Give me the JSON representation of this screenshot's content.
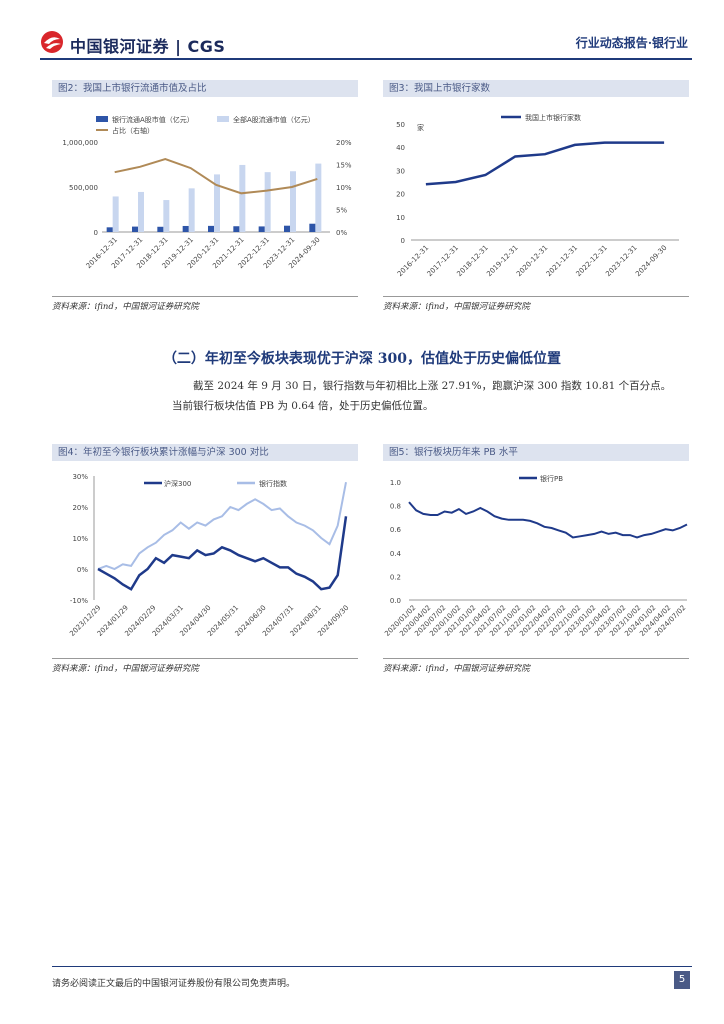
{
  "header": {
    "brand_cn": "中国银河证券",
    "brand_en": "CGS",
    "report_type": "行业动态报告",
    "industry": "·银行业",
    "colors": {
      "navy": "#1f3a7a",
      "logo_red": "#d9262b"
    }
  },
  "fig2": {
    "title": "图2：我国上市银行流通市值及占比",
    "source": "资料来源：ifind，中国银河证券研究院",
    "chart_data": {
      "type": "bar",
      "categories": [
        "2016-12-31",
        "2017-12-31",
        "2018-12-31",
        "2019-12-31",
        "2020-12-31",
        "2021-12-31",
        "2022-12-31",
        "2023-12-31",
        "2024-09-30"
      ],
      "series": [
        {
          "name": "银行流通A股市值（亿元）",
          "axis": "left",
          "color": "#2e55a8",
          "values": [
            52000,
            60000,
            58000,
            67000,
            68000,
            64000,
            62000,
            70000,
            92000
          ]
        },
        {
          "name": "全部A股流通市值（亿元）",
          "axis": "left",
          "color": "#c8d6ef",
          "values": [
            395000,
            445000,
            355000,
            485000,
            640000,
            745000,
            665000,
            675000,
            760000
          ]
        },
        {
          "name": "占比（右轴）",
          "axis": "right",
          "type": "line",
          "color": "#b08a57",
          "values": [
            13.3,
            14.5,
            16.2,
            14.2,
            10.5,
            8.6,
            9.2,
            10.0,
            11.8
          ]
        }
      ],
      "y_left": {
        "min": 0,
        "max": 1000000,
        "ticks": [
          "0",
          "500,000",
          "1,000,000"
        ]
      },
      "y_right": {
        "min": 0,
        "max": 20,
        "ticks": [
          "0%",
          "5%",
          "10%",
          "15%",
          "20%"
        ]
      }
    }
  },
  "fig3": {
    "title": "图3：我国上市银行家数",
    "source": "资料来源：ifind，中国银河证券研究院",
    "chart_data": {
      "type": "line",
      "categories": [
        "2016-12-31",
        "2017-12-31",
        "2018-12-31",
        "2019-12-31",
        "2020-12-31",
        "2021-12-31",
        "2022-12-31",
        "2023-12-31",
        "2024-09-30"
      ],
      "series": [
        {
          "name": "我国上市银行家数",
          "color": "#1f3a8a",
          "values": [
            24,
            25,
            28,
            36,
            37,
            41,
            42,
            42,
            42
          ]
        }
      ],
      "ylabel": "家",
      "y": {
        "min": 0,
        "max": 50,
        "ticks": [
          "0",
          "10",
          "20",
          "30",
          "40",
          "50"
        ]
      }
    }
  },
  "section": {
    "title": "（二）年初至今板块表现优于沪深 300，估值处于历史偏低位置",
    "paragraph": "截至 2024 年 9 月 30 日，银行指数与年初相比上涨 27.91%，跑赢沪深 300 指数 10.81 个百分点。当前银行板块估值 PB 为 0.64 倍，处于历史偏低位置。"
  },
  "fig4": {
    "title": "图4：年初至今银行板块累计涨幅与沪深 300 对比",
    "source": "资料来源：ifind，中国银河证券研究院",
    "chart_data": {
      "type": "line",
      "x_ticks": [
        "2023/12/29",
        "2024/01/29",
        "2024/02/29",
        "2024/03/31",
        "2024/04/30",
        "2024/05/31",
        "2024/06/30",
        "2024/07/31",
        "2024/08/31",
        "2024/09/30"
      ],
      "series": [
        {
          "name": "沪深300",
          "color": "#1f3a8a",
          "values": [
            0.0,
            -1.5,
            -3.0,
            -5.0,
            -6.5,
            -2.0,
            0.0,
            3.5,
            2.0,
            4.5,
            4.0,
            3.5,
            6.0,
            4.5,
            5.0,
            7.0,
            6.0,
            4.5,
            3.5,
            2.5,
            3.5,
            2.0,
            0.5,
            0.5,
            -1.5,
            -2.5,
            -4.0,
            -6.5,
            -6.0,
            -2.0,
            17.0
          ]
        },
        {
          "name": "银行指数",
          "color": "#a8bde6",
          "values": [
            0.0,
            1.0,
            0.0,
            1.5,
            1.0,
            5.0,
            7.0,
            8.5,
            11.0,
            12.5,
            15.0,
            13.0,
            15.0,
            14.0,
            16.0,
            17.0,
            20.0,
            19.0,
            21.0,
            22.5,
            21.0,
            19.0,
            19.5,
            17.0,
            15.0,
            14.0,
            12.5,
            10.0,
            8.0,
            14.0,
            28.0
          ]
        }
      ],
      "y": {
        "min": -10,
        "max": 30,
        "ticks": [
          "-10%",
          "0%",
          "10%",
          "20%",
          "30%"
        ]
      }
    }
  },
  "fig5": {
    "title": "图5：银行板块历年来 PB 水平",
    "source": "资料来源：ifind，中国银河证券研究院",
    "chart_data": {
      "type": "line",
      "x_ticks": [
        "2020/01/02",
        "2020/04/02",
        "2020/07/02",
        "2020/10/02",
        "2021/01/02",
        "2021/04/02",
        "2021/07/02",
        "2021/10/02",
        "2022/01/02",
        "2022/04/02",
        "2022/07/02",
        "2022/10/02",
        "2023/01/02",
        "2023/04/02",
        "2023/07/02",
        "2023/10/02",
        "2024/01/02",
        "2024/04/02",
        "2024/07/02"
      ],
      "series": [
        {
          "name": "银行PB",
          "color": "#1f3a8a",
          "values": [
            0.83,
            0.76,
            0.73,
            0.72,
            0.72,
            0.75,
            0.74,
            0.77,
            0.73,
            0.75,
            0.78,
            0.75,
            0.71,
            0.69,
            0.68,
            0.68,
            0.68,
            0.67,
            0.65,
            0.62,
            0.61,
            0.59,
            0.57,
            0.53,
            0.54,
            0.55,
            0.56,
            0.58,
            0.56,
            0.57,
            0.55,
            0.55,
            0.53,
            0.55,
            0.56,
            0.58,
            0.6,
            0.59,
            0.61,
            0.64
          ]
        }
      ],
      "y": {
        "min": 0,
        "max": 1.0,
        "ticks": [
          "0.0",
          "0.2",
          "0.4",
          "0.6",
          "0.8",
          "1.0"
        ]
      }
    }
  },
  "footer": {
    "disclaimer": "请务必阅读正文最后的中国银河证券股份有限公司免责声明。",
    "page_number": "5"
  }
}
